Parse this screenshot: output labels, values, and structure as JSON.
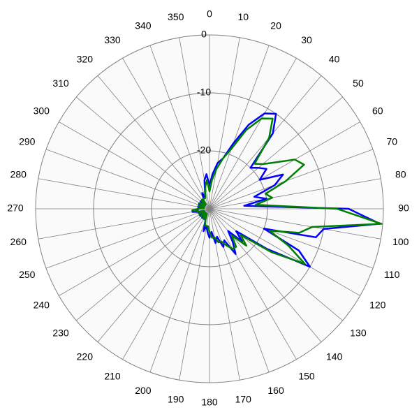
{
  "chart_data": {
    "type": "polar",
    "theta": [
      0,
      5,
      10,
      15,
      20,
      25,
      30,
      35,
      40,
      45,
      50,
      55,
      60,
      65,
      70,
      75,
      80,
      85,
      90,
      95,
      100,
      105,
      110,
      115,
      120,
      125,
      130,
      135,
      140,
      145,
      150,
      155,
      160,
      165,
      170,
      175,
      180,
      185,
      190,
      195,
      200,
      205,
      210,
      215,
      220,
      225,
      230,
      235,
      240,
      245,
      250,
      255,
      260,
      265,
      270,
      275,
      280,
      285,
      290,
      295,
      300,
      305,
      310,
      315,
      320,
      325,
      330,
      335,
      340,
      345,
      350,
      355
    ],
    "thetaticks": [
      0,
      10,
      20,
      30,
      40,
      50,
      60,
      70,
      80,
      90,
      100,
      110,
      120,
      130,
      140,
      150,
      160,
      170,
      180,
      190,
      200,
      210,
      220,
      230,
      240,
      250,
      260,
      270,
      280,
      290,
      300,
      310,
      320,
      330,
      340,
      350
    ],
    "rlim": [
      -30,
      0
    ],
    "rticks": [
      0,
      -10,
      -20
    ],
    "grid": true,
    "series": [
      {
        "color": "#0000ff",
        "values": [
          -26,
          -24,
          -22,
          -21,
          -18,
          -14,
          -11,
          -10,
          -13,
          -20,
          -19,
          -18,
          -20,
          -16,
          -18,
          -22,
          -20,
          -24,
          -6,
          -0.5,
          -10,
          -11,
          -20,
          -13,
          -10,
          -18,
          -24,
          -22,
          -25,
          -23,
          -21,
          -24,
          -23,
          -25,
          -24,
          -26,
          -25,
          -26,
          -27,
          -26,
          -28,
          -28,
          -28,
          -29,
          -28,
          -29,
          -29,
          -28,
          -29,
          -29,
          -28,
          -28,
          -27,
          -28,
          -28,
          -29,
          -28,
          -29,
          -29,
          -28,
          -29,
          -29,
          -28,
          -29,
          -28,
          -28,
          -28,
          -27,
          -28,
          -27,
          -25,
          -24
        ]
      },
      {
        "color": "#008000",
        "values": [
          -27,
          -25,
          -23,
          -21,
          -19,
          -15,
          -12,
          -11,
          -14,
          -19,
          -18,
          -16,
          -13,
          -12,
          -16,
          -20,
          -19,
          -22,
          -8,
          -0.2,
          -12,
          -14,
          -19,
          -15,
          -11,
          -17,
          -23,
          -21,
          -24,
          -22,
          -22,
          -23,
          -24,
          -24,
          -25,
          -25,
          -26,
          -27,
          -27,
          -27,
          -28,
          -29,
          -28,
          -28,
          -29,
          -29,
          -28,
          -29,
          -29,
          -28,
          -29,
          -28,
          -28,
          -27,
          -28,
          -29,
          -29,
          -28,
          -29,
          -29,
          -28,
          -29,
          -29,
          -28,
          -29,
          -28,
          -28,
          -28,
          -28,
          -27,
          -26,
          -25
        ]
      }
    ]
  }
}
